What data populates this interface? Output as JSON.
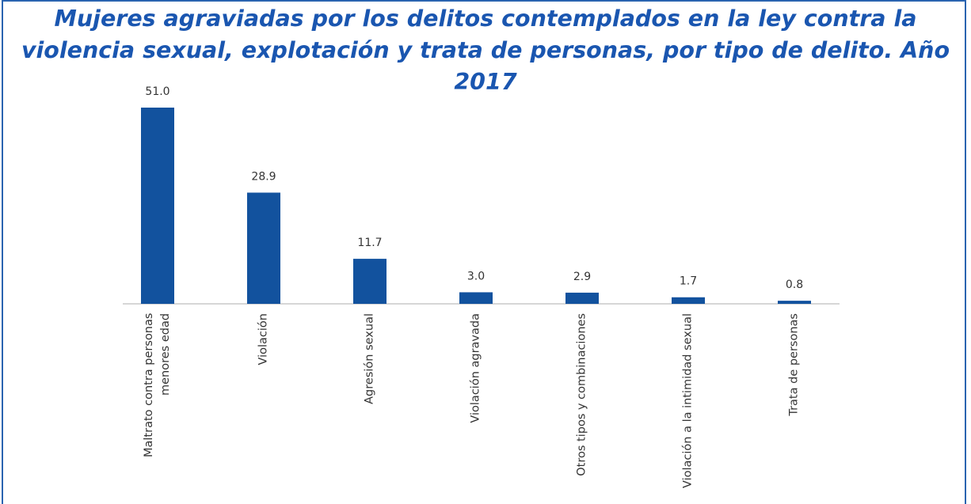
{
  "chart_data": {
    "type": "bar",
    "title": "Mujeres agraviadas por los delitos contemplados en la ley contra la violencia sexual, explotación y trata de personas, por tipo de delito. Año 2017",
    "categories": [
      "Maltrato contra personas menores edad",
      "Violación",
      "Agresión sexual",
      "Violación agravada",
      "Otros tipos y combinaciones",
      "Violación a la intimidad sexual",
      "Trata de personas"
    ],
    "values": [
      51.0,
      28.9,
      11.7,
      3.0,
      2.9,
      1.7,
      0.8
    ],
    "value_labels": [
      "51.0",
      "28.9",
      "11.7",
      "3.0",
      "2.9",
      "1.7",
      "0.8"
    ],
    "color": "#12529e"
  }
}
